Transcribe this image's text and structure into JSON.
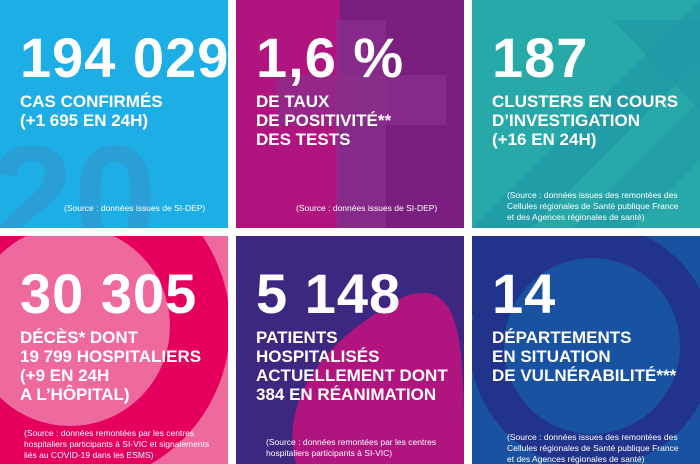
{
  "tiles": [
    {
      "value": "194 029",
      "label": "CAS CONFIRMÉS\n(+1 695 EN 24H)",
      "source": "(Source : données issues de SI-DEP)",
      "color": "#1eaee6"
    },
    {
      "value": "1,6 %",
      "label": "DE TAUX\nDE POSITIVITÉ**\nDES TESTS",
      "source": "(Source : données issues de SI-DEP)",
      "color": "#7a1f80"
    },
    {
      "value": "187",
      "label": "CLUSTERS EN COURS\nD’INVESTIGATION\n(+16 EN 24H)",
      "source": "(Source : données issues des remontées des\nCellules régionales de Santé publique France\net des Agences régionales de santé)",
      "color": "#27a9a9"
    },
    {
      "value": "30 305",
      "label": "DÉCÈS* DONT\n19 799 HOSPITALIERS\n(+9 EN 24H\nA L’HÔPITAL)",
      "source": "(Source : données remontées par les centres\nhospitaliers participants à SI-VIC et signalements\nliés au COVID-19 dans les ESMS)",
      "color": "#ee6a9c"
    },
    {
      "value": "5 148",
      "label": "PATIENTS\nHOSPITALISÉS\nACTUELLEMENT DONT\n384 EN RÉANIMATION",
      "source": "(Source : données remontées par les centres\nhospitaliers participants à SI-VIC)",
      "color": "#3c2880"
    },
    {
      "value": "14",
      "label": "DÉPARTEMENTS\nEN SITUATION\nDE VULNÉRABILITÉ***",
      "source": "(Source : données issues des remontées des\nCellules régionales de Santé publique France\net des Agences régionales de santé)",
      "color": "#1952a0"
    }
  ]
}
